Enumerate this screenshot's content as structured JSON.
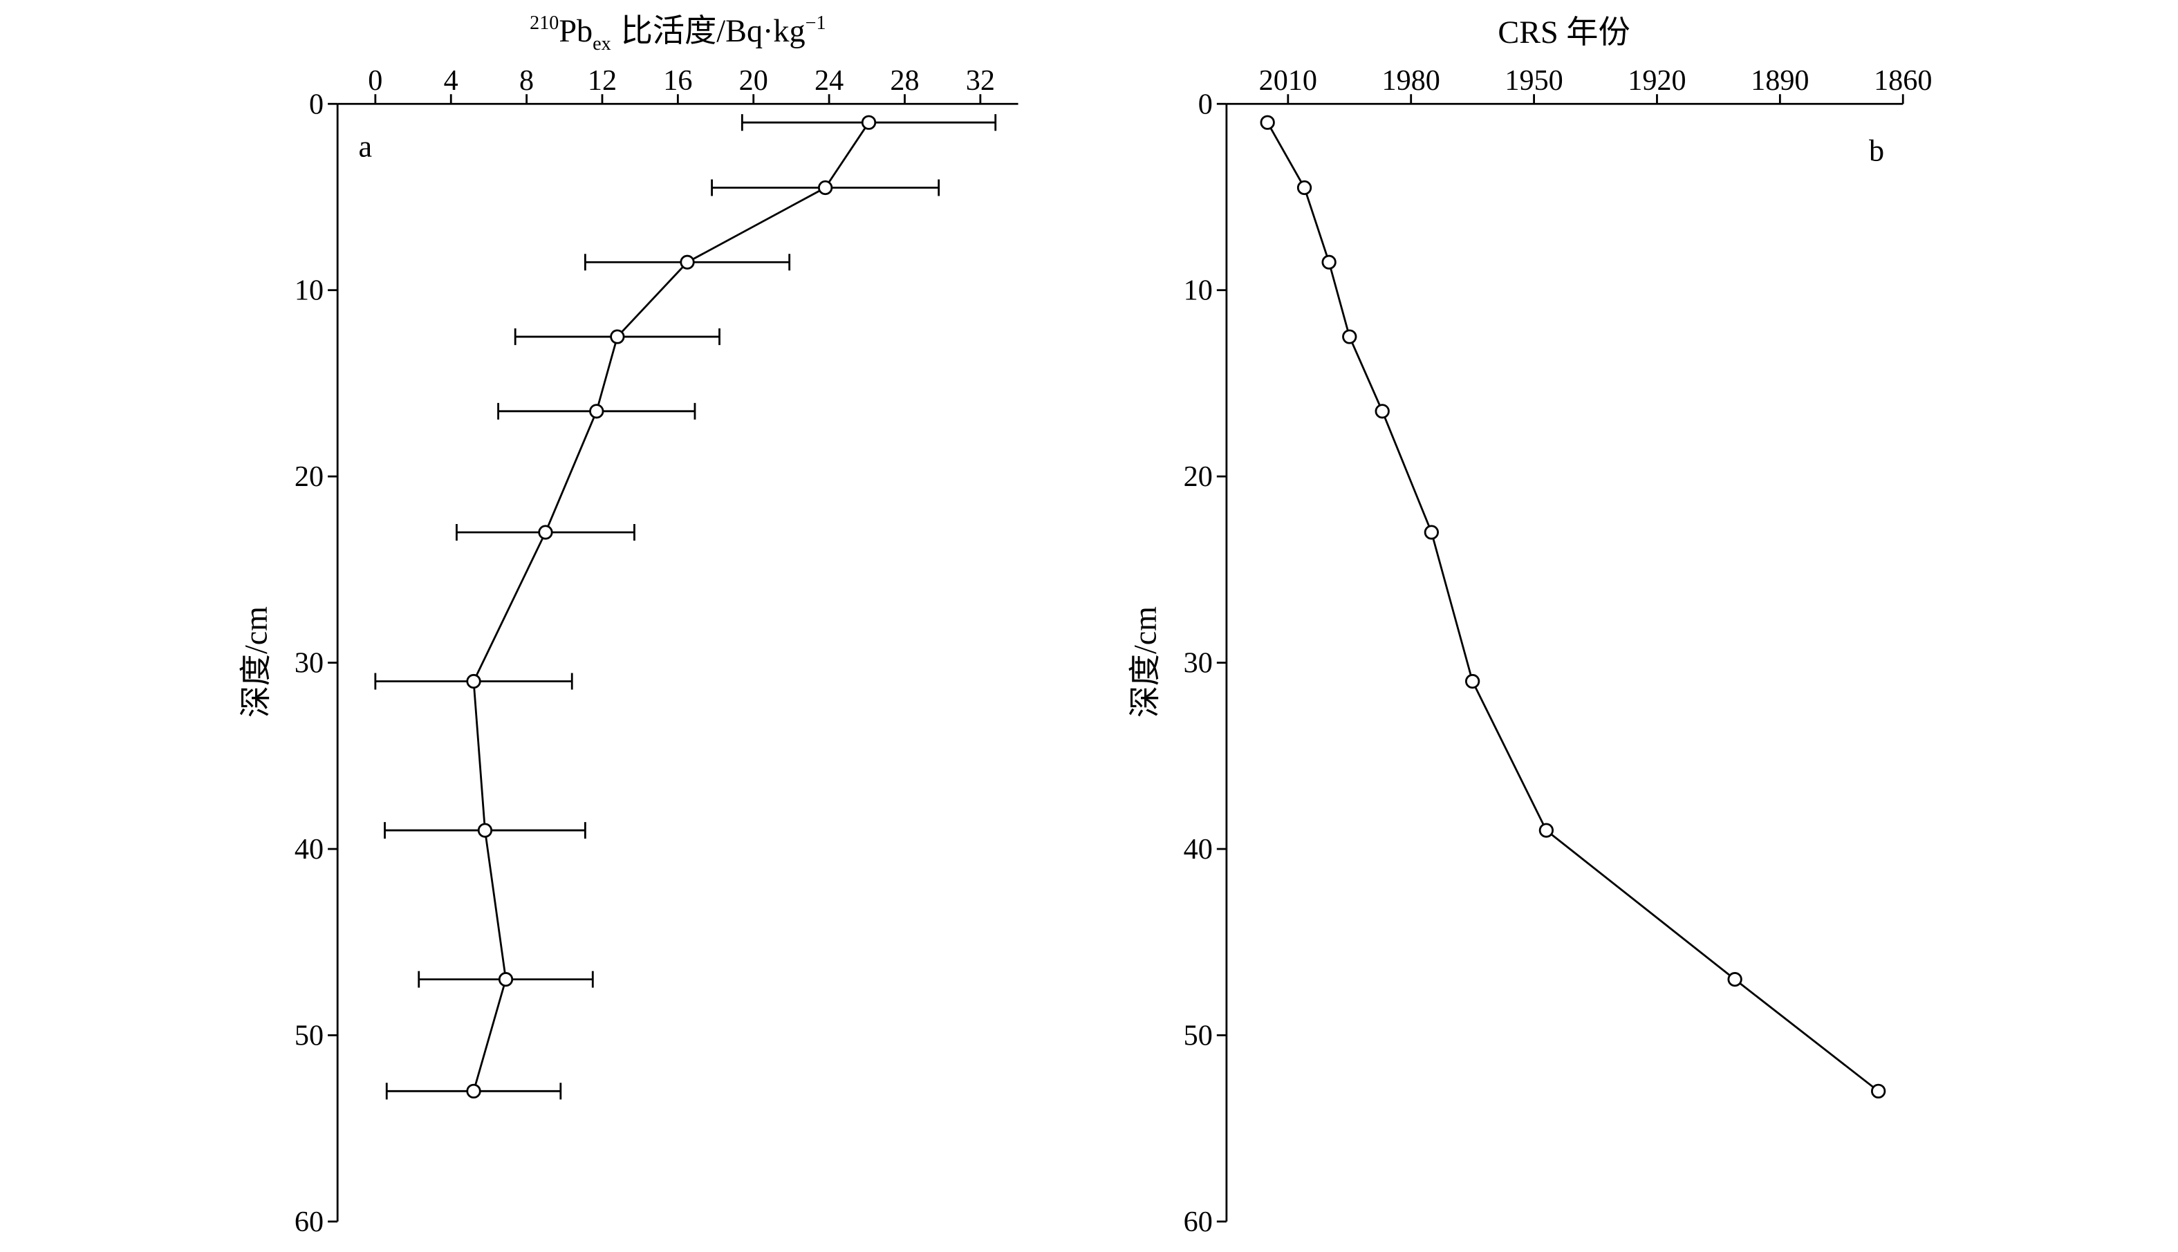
{
  "chart_data": [
    {
      "panel_label": "a",
      "type": "line",
      "xlabel": {
        "superscript": "210",
        "element": "Pb",
        "subscript": "ex",
        "text": "比活度/Bq·kg",
        "unit_exponent": "−1"
      },
      "ylabel": "深度/cm",
      "x_axis_position": "top",
      "y_axis_inverted": true,
      "xlim": [
        -2,
        34
      ],
      "ylim": [
        0,
        60
      ],
      "x_ticks": [
        0,
        4,
        8,
        12,
        16,
        20,
        24,
        28,
        32
      ],
      "y_ticks": [
        0,
        10,
        20,
        30,
        40,
        50,
        60
      ],
      "grid": false,
      "legend": "none",
      "series": [
        {
          "x": [
            26.1,
            23.8,
            16.5,
            12.8,
            11.7,
            9.0,
            5.2,
            5.8,
            6.9,
            5.2
          ],
          "y": [
            1,
            4.5,
            8.5,
            12.5,
            16.5,
            23,
            31,
            39,
            47,
            53
          ],
          "x_error": [
            6.7,
            6.0,
            5.4,
            5.4,
            5.2,
            4.7,
            5.2,
            5.3,
            4.6,
            4.6
          ],
          "marker": "open-circle",
          "color": "#000000",
          "marker_fill": "#ffffff"
        }
      ]
    },
    {
      "panel_label": "b",
      "type": "line",
      "xlabel": "CRS 年份",
      "ylabel": "深度/cm",
      "x_axis_position": "top",
      "x_axis_inverted": true,
      "y_axis_inverted": true,
      "xlim": [
        2025,
        1860
      ],
      "ylim": [
        0,
        60
      ],
      "x_ticks": [
        2010,
        1980,
        1950,
        1920,
        1890,
        1860
      ],
      "y_ticks": [
        0,
        10,
        20,
        30,
        40,
        50,
        60
      ],
      "grid": false,
      "legend": "none",
      "series": [
        {
          "x": [
            2015,
            2006,
            2000,
            1995,
            1987,
            1975,
            1965,
            1947,
            1901,
            1866
          ],
          "y": [
            1,
            4.5,
            8.5,
            12.5,
            16.5,
            23,
            31,
            39,
            47,
            53
          ],
          "marker": "open-circle",
          "color": "#000000",
          "marker_fill": "#ffffff"
        }
      ]
    }
  ]
}
